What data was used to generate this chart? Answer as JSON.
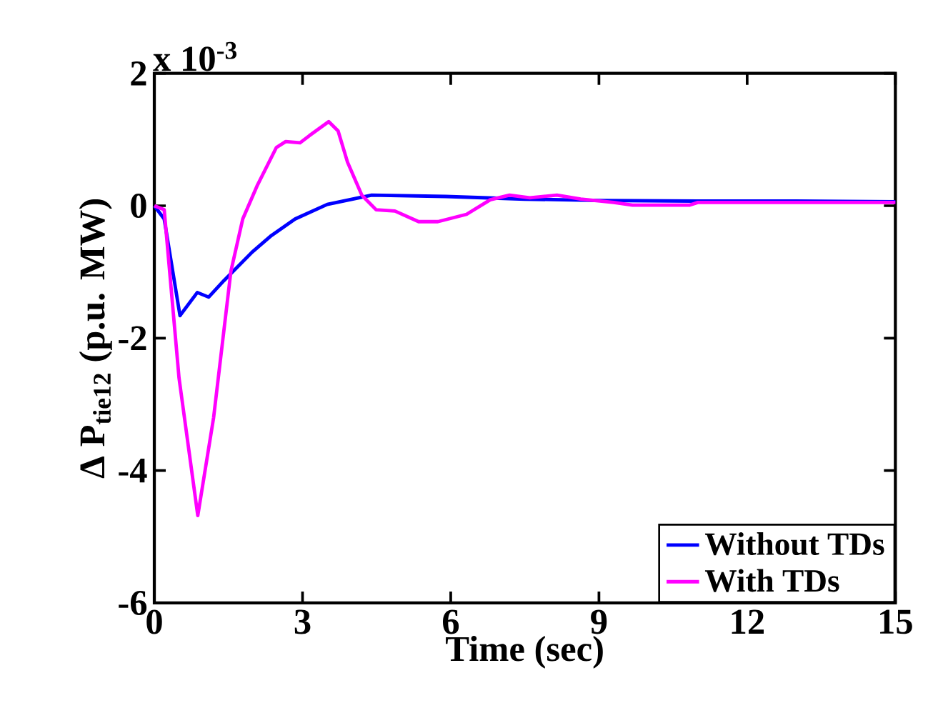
{
  "chart_data": {
    "type": "line",
    "xlabel": "Time (sec)",
    "ylabel": "Δ P$_{tie12}$ (p.u. MW)",
    "annotations": [
      "x 10$^{-3}$"
    ],
    "xlim": [
      0,
      15
    ],
    "xticks": [
      0,
      3,
      6,
      9,
      12,
      15
    ],
    "ylim": [
      -6,
      2
    ],
    "yticks": [
      -6,
      -4,
      -2,
      0,
      2
    ],
    "legend": "bottom right",
    "grid": false,
    "series": [
      {
        "name": "Without TDs",
        "color": "#0000ff",
        "x": [
          0,
          0.2,
          0.52,
          0.87,
          1.1,
          1.41,
          1.98,
          2.37,
          2.85,
          3.5,
          4.4,
          5.9,
          7.5,
          9.0,
          11.0,
          13.0,
          15.0
        ],
        "values": [
          0,
          -0.2,
          -1.66,
          -1.31,
          -1.38,
          -1.13,
          -0.7,
          -0.45,
          -0.2,
          0.02,
          0.16,
          0.14,
          0.1,
          0.08,
          0.07,
          0.07,
          0.06
        ]
      },
      {
        "name": "With TDs",
        "color": "#ff00ff",
        "x": [
          0,
          0.2,
          0.5,
          0.88,
          1.2,
          1.55,
          1.79,
          2.08,
          2.47,
          2.66,
          2.95,
          3.14,
          3.53,
          3.72,
          3.91,
          4.2,
          4.49,
          4.87,
          5.35,
          5.74,
          6.32,
          6.8,
          7.19,
          7.6,
          8.15,
          8.63,
          9.3,
          9.68,
          10.84,
          11.0,
          13.0,
          15.0
        ],
        "values": [
          0,
          -0.06,
          -2.6,
          -4.68,
          -3.2,
          -0.99,
          -0.2,
          0.3,
          0.88,
          0.97,
          0.95,
          1.06,
          1.27,
          1.13,
          0.66,
          0.16,
          -0.06,
          -0.08,
          -0.24,
          -0.24,
          -0.13,
          0.09,
          0.16,
          0.12,
          0.16,
          0.1,
          0.05,
          0.01,
          0.01,
          0.05,
          0.05,
          0.05
        ]
      }
    ]
  }
}
